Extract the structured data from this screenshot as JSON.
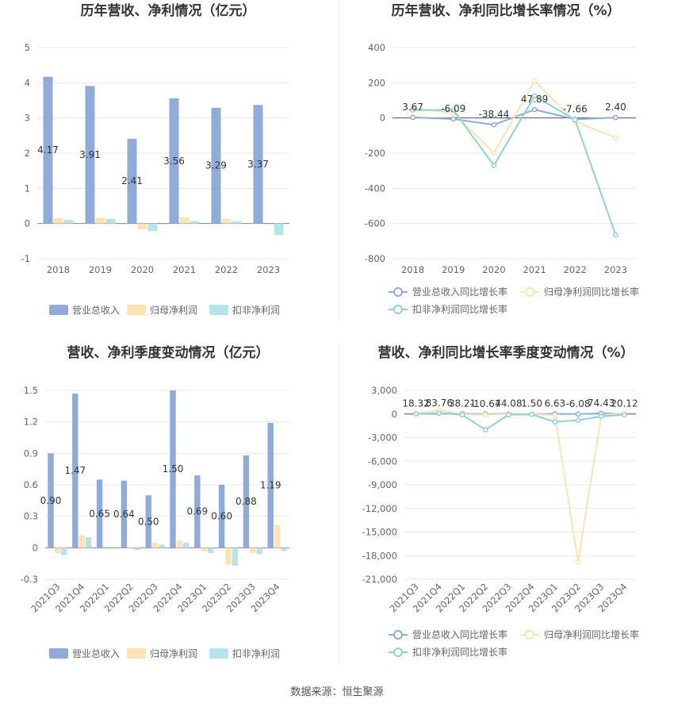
{
  "source": "数据来源：恒生聚源",
  "colors": {
    "revenue": "#8eabd9",
    "net_profit": "#fde2b2",
    "deducted_profit": "#b5e5e8",
    "growth_revenue": "#8eabd9",
    "growth_net": "#fde2b2",
    "growth_deducted": "#8dd3d6"
  },
  "chart_data": [
    {
      "type": "bar",
      "title": "历年营收、净利情况（亿元）",
      "categories": [
        "2018",
        "2019",
        "2020",
        "2021",
        "2022",
        "2023"
      ],
      "ylim": [
        -1,
        5
      ],
      "yticks": [
        "5",
        "4",
        "3",
        "2",
        "1",
        "0",
        "-1"
      ],
      "series": [
        {
          "name": "营业总收入",
          "values": [
            4.17,
            3.91,
            2.41,
            3.56,
            3.29,
            3.37
          ],
          "labels": [
            "4.17",
            "3.91",
            "2.41",
            "3.56",
            "3.29",
            "3.37"
          ]
        },
        {
          "name": "归母净利润",
          "values": [
            0.15,
            0.16,
            -0.17,
            0.17,
            0.13,
            0.0
          ]
        },
        {
          "name": "扣非净利润",
          "values": [
            0.1,
            0.13,
            -0.22,
            0.07,
            0.06,
            -0.33
          ]
        }
      ],
      "legend": "bottom",
      "grid": true
    },
    {
      "type": "line",
      "title": "历年营收、净利同比增长率情况（%）",
      "categories": [
        "2018",
        "2019",
        "2020",
        "2021",
        "2022",
        "2023"
      ],
      "ylim": [
        -800,
        400
      ],
      "yticks": [
        "400",
        "200",
        "0",
        "-200",
        "-400",
        "-600",
        "-800"
      ],
      "series": [
        {
          "name": "营业总收入同比增长率",
          "values": [
            3.67,
            -6.09,
            -38.44,
            47.89,
            -7.66,
            2.4
          ],
          "labels": [
            "3.67",
            "-6.09",
            "-38.44",
            "47.89",
            "-7.66",
            "2.40"
          ]
        },
        {
          "name": "归母净利润同比增长率",
          "values": [
            55,
            30,
            -200,
            210,
            -20,
            -113
          ]
        },
        {
          "name": "扣非净利润同比增长率",
          "values": [
            45,
            45,
            -270,
            125,
            -10,
            -665
          ]
        }
      ],
      "legend": "bottom",
      "grid": true
    },
    {
      "type": "bar",
      "title": "营收、净利季度变动情况（亿元）",
      "categories": [
        "2021Q3",
        "2021Q4",
        "2022Q1",
        "2022Q2",
        "2022Q3",
        "2022Q4",
        "2023Q1",
        "2023Q2",
        "2023Q3",
        "2023Q4"
      ],
      "ylim": [
        -0.3,
        1.5
      ],
      "yticks": [
        "1.5",
        "1.2",
        "0.9",
        "0.6",
        "0.3",
        "0",
        "-0.3"
      ],
      "series": [
        {
          "name": "营业总收入",
          "values": [
            0.9,
            1.47,
            0.65,
            0.64,
            0.5,
            1.5,
            0.69,
            0.6,
            0.88,
            1.19
          ],
          "labels": [
            "0.90",
            "1.47",
            "0.65",
            "0.64",
            "0.50",
            "1.50",
            "0.69",
            "0.60",
            "0.88",
            "1.19"
          ]
        },
        {
          "name": "归母净利润",
          "values": [
            -0.05,
            0.12,
            0.0,
            -0.01,
            0.05,
            0.07,
            -0.03,
            -0.16,
            -0.05,
            0.22
          ]
        },
        {
          "name": "扣非净利润",
          "values": [
            -0.07,
            0.1,
            0.0,
            -0.02,
            0.03,
            0.05,
            -0.05,
            -0.17,
            -0.06,
            -0.03
          ]
        }
      ],
      "legend": "bottom",
      "grid": true
    },
    {
      "type": "line",
      "title": "营收、净利同比增长率季度变动情况（%）",
      "categories": [
        "2021Q3",
        "2021Q4",
        "2022Q1",
        "2022Q2",
        "2022Q3",
        "2022Q4",
        "2023Q1",
        "2023Q2",
        "2023Q3",
        "2023Q4"
      ],
      "ylim": [
        -21000,
        3000
      ],
      "yticks": [
        "3,000",
        "0",
        "-3,000",
        "-6,000",
        "-9,000",
        "-12,000",
        "-15,000",
        "-18,000",
        "-21,000"
      ],
      "series": [
        {
          "name": "营业总收入同比增长率",
          "values": [
            18.32,
            83.76,
            38.21,
            -10.67,
            44.08,
            1.5,
            6.63,
            -6.08,
            74.43,
            20.12
          ],
          "labels": [
            "18.32",
            "83.76",
            "38.21",
            "-10.67",
            "44.08",
            "1.50",
            "6.63",
            "-6.08",
            "74.43",
            "20.12"
          ]
        },
        {
          "name": "归母净利润同比增长率",
          "values": [
            50,
            500,
            -50,
            -100,
            0,
            0,
            -150,
            -18800,
            -200,
            150
          ]
        },
        {
          "name": "扣非净利润同比增长率",
          "values": [
            20,
            100,
            -100,
            -2000,
            -100,
            -50,
            -1000,
            -800,
            -300,
            -100
          ]
        }
      ],
      "legend": "bottom",
      "grid": true
    }
  ]
}
